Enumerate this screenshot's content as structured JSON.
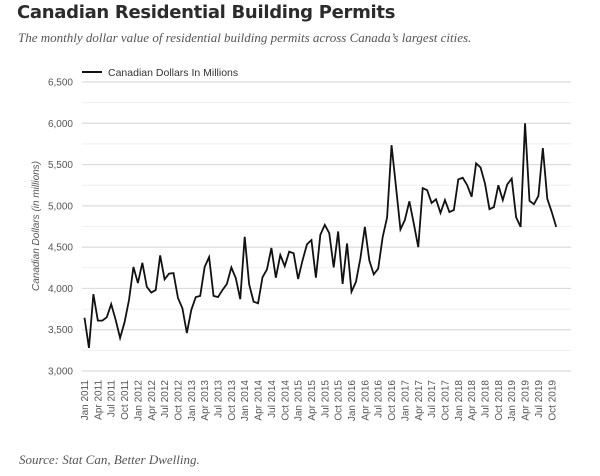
{
  "header": {
    "title": "Canadian Residential Building Permits",
    "subtitle": "The monthly dollar value of residential building permits across Canada’s largest cities."
  },
  "footer": {
    "source": "Source: Stat Can, Better Dwelling."
  },
  "colors": {
    "line": "#111111",
    "grid": "#e3e3e3",
    "text": "#555555"
  },
  "chart_data": {
    "type": "line",
    "title": "Canadian Residential Building Permits",
    "xlabel": "",
    "ylabel": "Canadian Dollars (in millions)",
    "ylim": [
      3000,
      6500
    ],
    "yticks": [
      3000,
      3500,
      4000,
      4500,
      5000,
      5500,
      6000,
      6500
    ],
    "ytick_labels": [
      "3,000",
      "3,500",
      "4,000",
      "4,500",
      "5,000",
      "5,500",
      "6,000",
      "6,500"
    ],
    "minor_grid_step": 250,
    "grid": true,
    "legend": {
      "position": "top-left",
      "entries": [
        "Canadian Dollars In Millions"
      ]
    },
    "x_start": "Jan 2011",
    "x_tick_labels": [
      "Jan 2011",
      "Apr 2011",
      "Jul 2011",
      "Oct 2011",
      "Jan 2012",
      "Apr 2012",
      "Jul 2012",
      "Oct 2012",
      "Jan 2013",
      "Apr 2013",
      "Jul 2013",
      "Oct 2013",
      "Jan 2014",
      "Apr 2014",
      "Jul 2014",
      "Oct 2014",
      "Jan 2015",
      "Apr 2015",
      "Jul 2015",
      "Oct 2015",
      "Jan 2016",
      "Apr 2016",
      "Jul 2016",
      "Oct 2016",
      "Jan 2017",
      "Apr 2017",
      "Jul 2017",
      "Oct 2017",
      "Jan 2018",
      "Apr 2018",
      "Jul 2018",
      "Oct 2018",
      "Jan 2019",
      "Apr 2019",
      "Jul 2019",
      "Oct 2019"
    ],
    "series": [
      {
        "name": "Canadian Dollars In Millions",
        "frequency": "monthly",
        "start": "Jan 2011",
        "end": "Nov 2019",
        "values": [
          3645,
          3280,
          3930,
          3610,
          3610,
          3650,
          3810,
          3620,
          3400,
          3590,
          3860,
          4260,
          4065,
          4310,
          4020,
          3950,
          3980,
          4400,
          4110,
          4180,
          4185,
          3885,
          3760,
          3460,
          3740,
          3895,
          3910,
          4260,
          4380,
          3910,
          3895,
          3980,
          4055,
          4255,
          4125,
          3870,
          4625,
          4050,
          3840,
          3820,
          4135,
          4230,
          4490,
          4130,
          4405,
          4270,
          4445,
          4425,
          4115,
          4340,
          4535,
          4585,
          4130,
          4650,
          4770,
          4670,
          4255,
          4690,
          4055,
          4545,
          3960,
          4080,
          4365,
          4745,
          4340,
          4170,
          4240,
          4620,
          4860,
          5735,
          5230,
          4715,
          4830,
          5055,
          4785,
          4500,
          5215,
          5190,
          5035,
          5080,
          4915,
          5070,
          4925,
          4950,
          5320,
          5340,
          5250,
          5110,
          5515,
          5465,
          5270,
          4960,
          4985,
          5250,
          5070,
          5260,
          5330,
          4860,
          4745,
          6000,
          5060,
          5020,
          5120,
          5700,
          5085,
          4925,
          4745
        ]
      }
    ]
  }
}
